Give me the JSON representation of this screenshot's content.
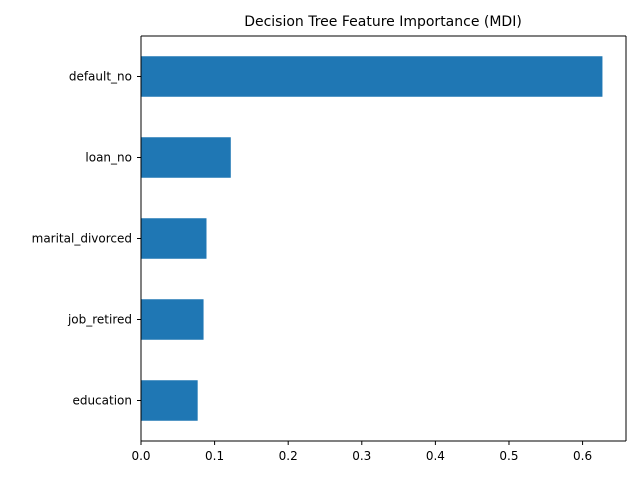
{
  "chart_data": {
    "type": "bar",
    "orientation": "horizontal",
    "title": "Decision Tree Feature Importance (MDI)",
    "xlabel": "",
    "ylabel": "",
    "categories": [
      "default_no",
      "loan_no",
      "marital_divorced",
      "job_retired",
      "education"
    ],
    "values": [
      0.627,
      0.122,
      0.089,
      0.085,
      0.077
    ],
    "xlim": [
      0,
      0.659
    ],
    "xticks": [
      0.0,
      0.1,
      0.2,
      0.3,
      0.4,
      0.5,
      0.6
    ],
    "xtick_labels": [
      "0.0",
      "0.1",
      "0.2",
      "0.3",
      "0.4",
      "0.5",
      "0.6"
    ],
    "grid": false,
    "bar_color": "#1f77b4"
  }
}
